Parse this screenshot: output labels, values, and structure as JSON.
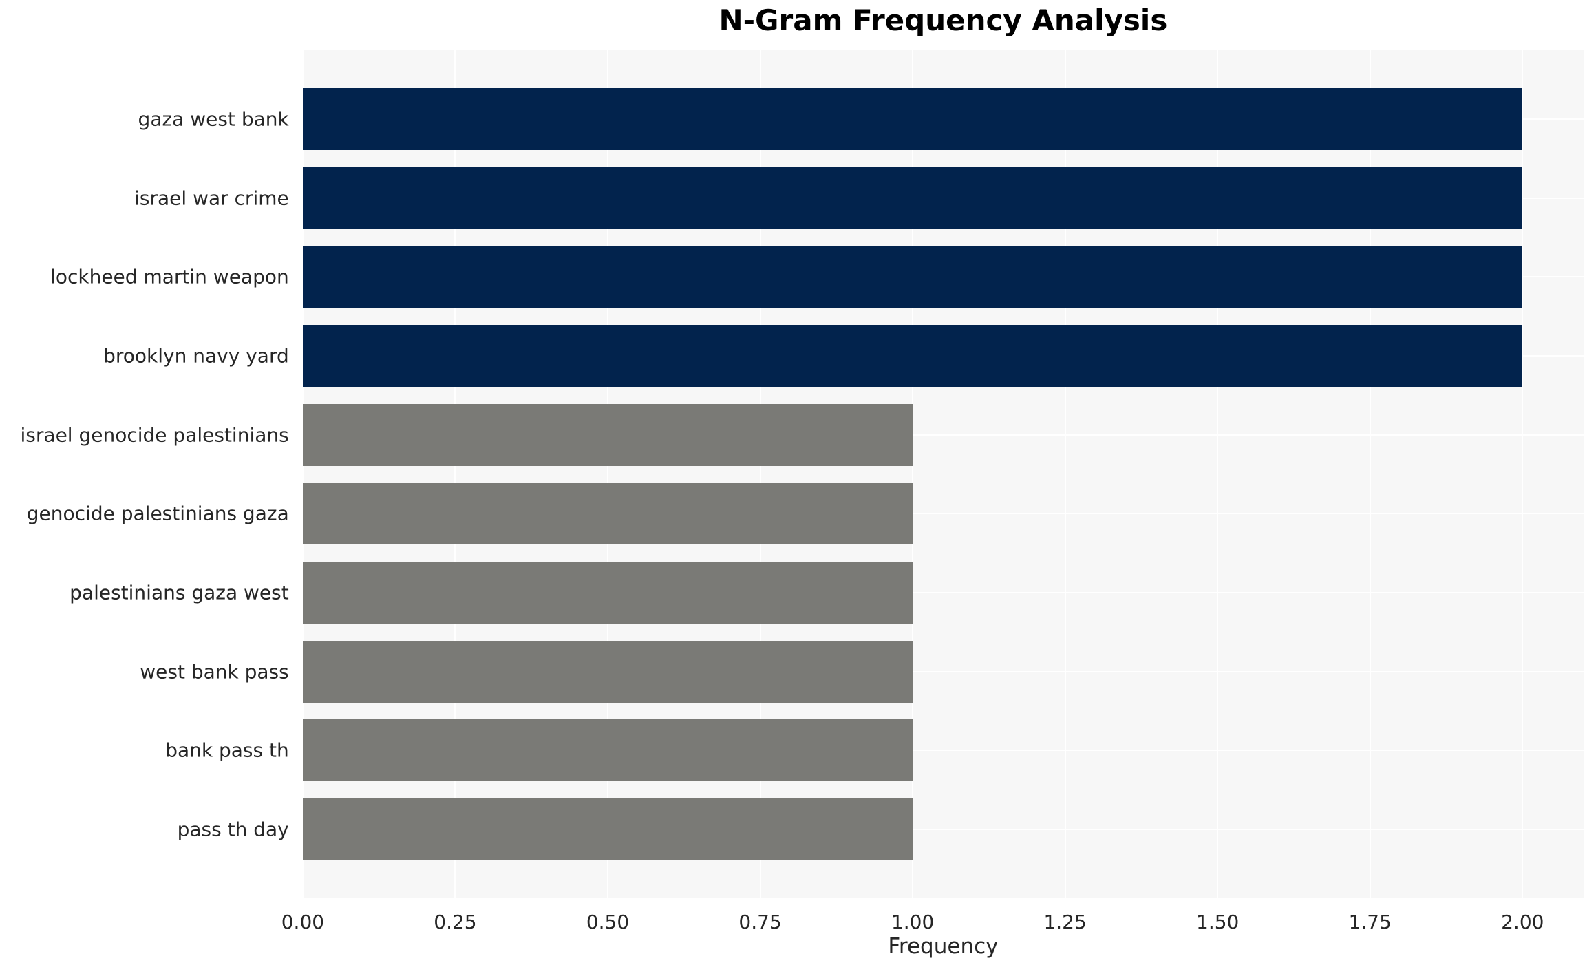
{
  "chart_data": {
    "type": "bar",
    "orientation": "horizontal",
    "title": "N-Gram Frequency Analysis",
    "xlabel": "Frequency",
    "ylabel": "",
    "categories": [
      "gaza west bank",
      "israel war crime",
      "lockheed martin weapon",
      "brooklyn navy yard",
      "israel genocide palestinians",
      "genocide palestinians gaza",
      "palestinians gaza west",
      "west bank pass",
      "bank pass th",
      "pass th day"
    ],
    "values": [
      2,
      2,
      2,
      2,
      1,
      1,
      1,
      1,
      1,
      1
    ],
    "bar_colors": [
      "#02234d",
      "#02234d",
      "#02234d",
      "#02234d",
      "#7a7a76",
      "#7a7a76",
      "#7a7a76",
      "#7a7a76",
      "#7a7a76",
      "#7a7a76"
    ],
    "xlim": [
      0,
      2.1
    ],
    "xticks": [
      0.0,
      0.25,
      0.5,
      0.75,
      1.0,
      1.25,
      1.5,
      1.75,
      2.0
    ],
    "xtick_labels": [
      "0.00",
      "0.25",
      "0.50",
      "0.75",
      "1.00",
      "1.25",
      "1.50",
      "1.75",
      "2.00"
    ],
    "grid": true,
    "legend": "none",
    "colors": {
      "high_value_bar": "#02234d",
      "low_value_bar": "#7a7a76",
      "plot_background": "#f7f7f7",
      "gridline": "#ffffff",
      "tick_text": "#262626",
      "title_text": "#000000"
    }
  }
}
